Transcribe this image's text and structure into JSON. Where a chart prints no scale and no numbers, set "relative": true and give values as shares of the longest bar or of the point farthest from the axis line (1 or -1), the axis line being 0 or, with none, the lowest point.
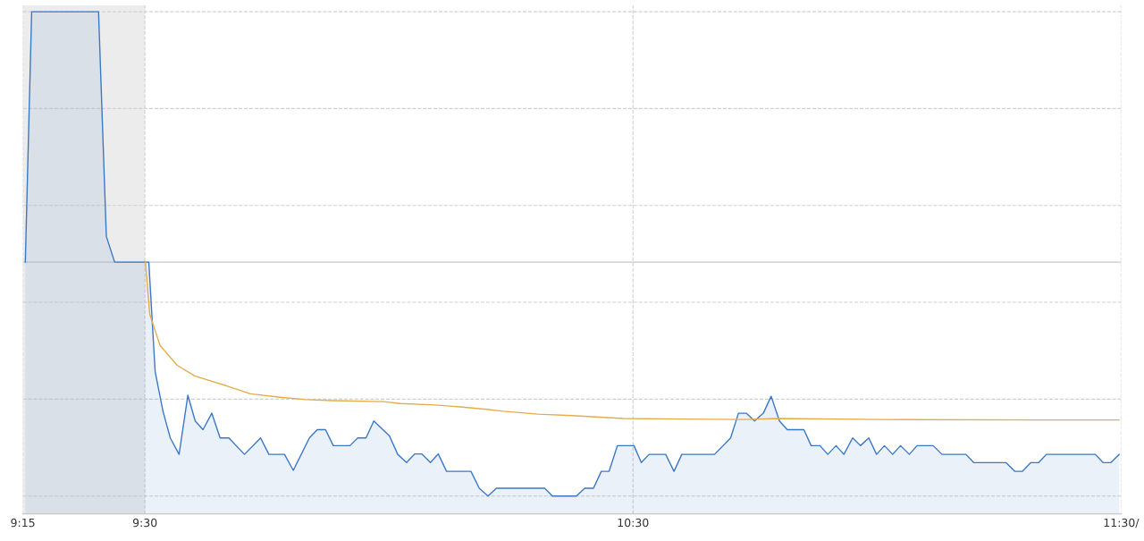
{
  "chart_data": {
    "type": "area",
    "relative": true,
    "xlim": [
      9.25,
      11.5
    ],
    "xticks": [
      {
        "value": 9.25,
        "label": "9:15"
      },
      {
        "value": 9.5,
        "label": "9:30"
      },
      {
        "value": 10.5,
        "label": "10:30"
      },
      {
        "value": 11.5,
        "label": "11:30/"
      }
    ],
    "grid": true,
    "series": [
      {
        "color": "#3a78c3",
        "x": [
          9.255,
          9.268,
          9.405,
          9.421,
          9.438,
          9.501,
          9.508,
          9.521,
          9.537,
          9.552,
          9.57,
          9.588,
          9.603,
          9.619,
          9.637,
          9.654,
          9.672,
          9.704,
          9.737,
          9.754,
          9.786,
          9.804,
          9.837,
          9.853,
          9.87,
          9.886,
          9.92,
          9.936,
          9.953,
          9.969,
          10.001,
          10.018,
          10.036,
          10.053,
          10.067,
          10.085,
          10.101,
          10.118,
          10.168,
          10.185,
          10.203,
          10.22,
          10.319,
          10.335,
          10.384,
          10.401,
          10.419,
          10.435,
          10.451,
          10.468,
          10.502,
          10.517,
          10.533,
          10.567,
          10.584,
          10.6,
          10.667,
          10.7,
          10.716,
          10.732,
          10.749,
          10.767,
          10.783,
          10.8,
          10.816,
          10.85,
          10.865,
          10.883,
          10.899,
          10.916,
          10.932,
          10.95,
          10.966,
          10.983,
          10.999,
          11.015,
          11.032,
          11.048,
          11.066,
          11.082,
          11.115,
          11.133,
          11.182,
          11.198,
          11.264,
          11.282,
          11.298,
          11.315,
          11.331,
          11.347,
          11.447,
          11.463,
          11.479,
          11.496
        ],
        "values": [
          0.483,
          1.0,
          1.0,
          0.536,
          0.483,
          0.483,
          0.483,
          0.257,
          0.175,
          0.12,
          0.086,
          0.208,
          0.155,
          0.137,
          0.171,
          0.12,
          0.12,
          0.086,
          0.12,
          0.086,
          0.086,
          0.053,
          0.12,
          0.137,
          0.137,
          0.104,
          0.104,
          0.12,
          0.12,
          0.155,
          0.124,
          0.086,
          0.069,
          0.087,
          0.087,
          0.069,
          0.087,
          0.051,
          0.051,
          0.016,
          0,
          0.016,
          0.016,
          0,
          0,
          0.016,
          0.016,
          0.051,
          0.051,
          0.104,
          0.104,
          0.069,
          0.086,
          0.086,
          0.051,
          0.086,
          0.086,
          0.12,
          0.171,
          0.171,
          0.155,
          0.171,
          0.206,
          0.155,
          0.137,
          0.137,
          0.104,
          0.104,
          0.086,
          0.104,
          0.086,
          0.12,
          0.104,
          0.12,
          0.086,
          0.104,
          0.086,
          0.104,
          0.086,
          0.104,
          0.104,
          0.086,
          0.086,
          0.069,
          0.069,
          0.051,
          0.051,
          0.069,
          0.069,
          0.086,
          0.086,
          0.069,
          0.069,
          0.086
        ]
      },
      {
        "type": "line",
        "color": "#e3ad4a",
        "x": [
          9.501,
          9.51,
          9.531,
          9.566,
          9.602,
          9.672,
          9.716,
          9.777,
          9.83,
          9.883,
          9.988,
          10.023,
          10.094,
          10.146,
          10.199,
          10.234,
          10.305,
          10.375,
          10.48,
          10.727,
          10.797,
          11.008,
          11.324,
          11.496
        ],
        "values": [
          0.483,
          0.375,
          0.311,
          0.27,
          0.248,
          0.226,
          0.211,
          0.204,
          0.199,
          0.197,
          0.195,
          0.191,
          0.188,
          0.184,
          0.179,
          0.175,
          0.169,
          0.166,
          0.16,
          0.158,
          0.16,
          0.158,
          0.157,
          0.157
        ]
      }
    ],
    "ref_lines": [
      {
        "axis": "y",
        "value": 0.483,
        "color": "#c8c8c8",
        "line_style": "solid"
      }
    ],
    "bands": [
      {
        "axis": "x",
        "from": 9.25,
        "to": 9.5,
        "color": "#ececec"
      }
    ]
  }
}
